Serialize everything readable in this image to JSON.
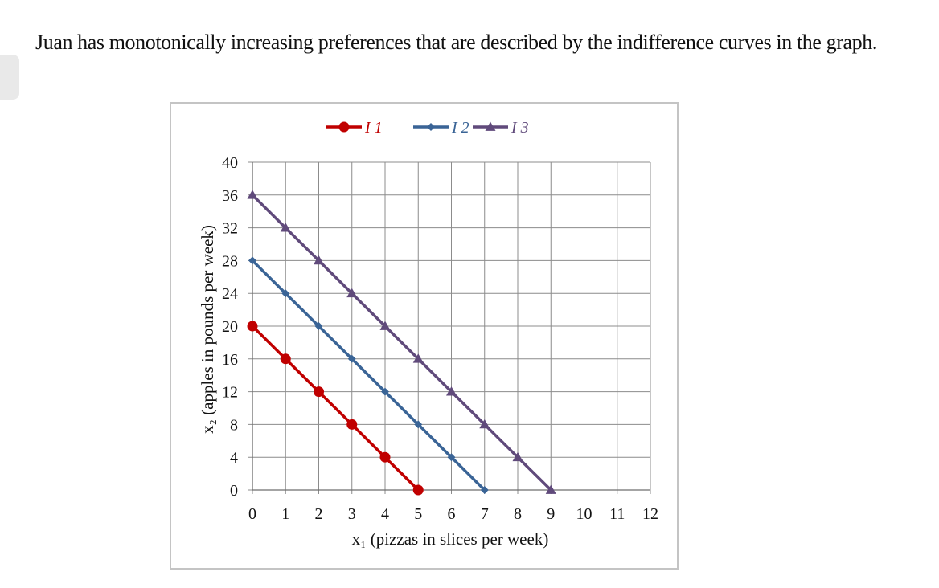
{
  "question": {
    "text": "Juan has monotonically increasing preferences that are described by the indifference curves in the graph."
  },
  "chart_data": {
    "type": "line",
    "title": "",
    "xlabel": "x₁ (pizzas in slices per week)",
    "ylabel": "x₂ (apples in pounds per week)",
    "xlim": [
      0,
      12
    ],
    "ylim": [
      0,
      40
    ],
    "x_ticks": [
      "0",
      "1",
      "2",
      "3",
      "4",
      "5",
      "6",
      "7",
      "8",
      "9",
      "10",
      "11",
      "12"
    ],
    "y_ticks": [
      "0",
      "4",
      "8",
      "12",
      "16",
      "20",
      "24",
      "28",
      "32",
      "36",
      "40"
    ],
    "grid": true,
    "legend_position": "top",
    "series": [
      {
        "name": "I 1",
        "color": "#c00000",
        "marker": "circle",
        "x": [
          0,
          1,
          2,
          3,
          4,
          5
        ],
        "y": [
          20,
          16,
          12,
          8,
          4,
          0
        ]
      },
      {
        "name": "I 2",
        "color": "#3a6496",
        "marker": "diamond",
        "x": [
          0,
          1,
          2,
          3,
          4,
          5,
          6,
          7
        ],
        "y": [
          28,
          24,
          20,
          16,
          12,
          8,
          4,
          0
        ]
      },
      {
        "name": "I 3",
        "color": "#604a7b",
        "marker": "triangle",
        "x": [
          0,
          1,
          2,
          3,
          4,
          5,
          6,
          7,
          8,
          9
        ],
        "y": [
          36,
          32,
          28,
          24,
          20,
          16,
          12,
          8,
          4,
          0
        ]
      }
    ]
  }
}
